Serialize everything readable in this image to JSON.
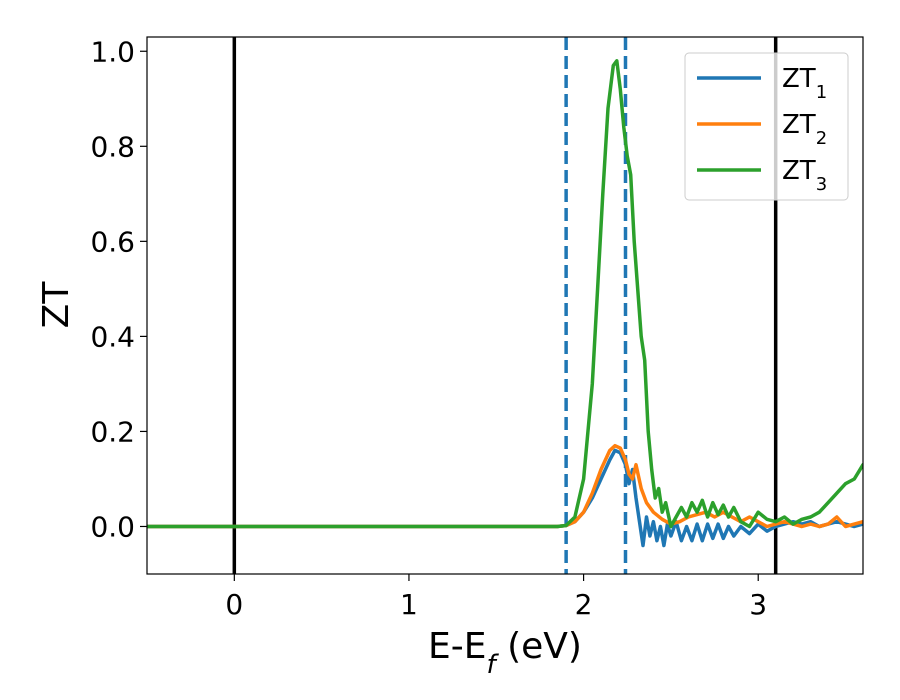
{
  "chart_data": {
    "type": "line",
    "xlabel": "E-E_f (eV)",
    "xlabel_main": "E-E",
    "xlabel_sub": "f",
    "xlabel_tail": " (eV)",
    "ylabel": "ZT",
    "xlim": [
      -0.5,
      3.6
    ],
    "ylim": [
      -0.1,
      1.03
    ],
    "xticks": [
      0,
      1,
      2,
      3
    ],
    "xtick_labels": [
      "0",
      "1",
      "2",
      "3"
    ],
    "yticks": [
      0.0,
      0.2,
      0.4,
      0.6,
      0.8,
      1.0
    ],
    "ytick_labels": [
      "0.0",
      "0.2",
      "0.4",
      "0.6",
      "0.8",
      "1.0"
    ],
    "grid": false,
    "legend_position": "top-right",
    "vlines": [
      {
        "x": 0.0,
        "style": "solid",
        "color": "#000000"
      },
      {
        "x": 3.1,
        "style": "solid",
        "color": "#000000"
      },
      {
        "x": 1.9,
        "style": "dashed",
        "color": "#1f77b4"
      },
      {
        "x": 2.24,
        "style": "dashed",
        "color": "#1f77b4"
      }
    ],
    "series": [
      {
        "name": "ZT_1",
        "legend_main": "ZT",
        "legend_sub": "1",
        "color": "#1f77b4",
        "x": [
          -0.5,
          1.85,
          1.9,
          1.95,
          2.0,
          2.05,
          2.1,
          2.15,
          2.18,
          2.21,
          2.24,
          2.26,
          2.28,
          2.3,
          2.32,
          2.34,
          2.36,
          2.38,
          2.4,
          2.42,
          2.44,
          2.46,
          2.48,
          2.5,
          2.53,
          2.56,
          2.59,
          2.62,
          2.65,
          2.68,
          2.71,
          2.74,
          2.77,
          2.8,
          2.83,
          2.86,
          2.9,
          2.95,
          3.0,
          3.05,
          3.1,
          3.15,
          3.2,
          3.25,
          3.3,
          3.35,
          3.4,
          3.45,
          3.5,
          3.55,
          3.6
        ],
        "y": [
          0.0,
          0.0,
          0.002,
          0.01,
          0.03,
          0.06,
          0.1,
          0.14,
          0.16,
          0.155,
          0.13,
          0.09,
          0.12,
          0.06,
          0.01,
          -0.04,
          0.02,
          -0.02,
          0.01,
          -0.03,
          0.0,
          -0.04,
          0.005,
          -0.02,
          0.01,
          -0.03,
          0.0,
          -0.03,
          0.005,
          -0.03,
          0.005,
          -0.025,
          0.005,
          -0.025,
          0.0,
          -0.02,
          0.0,
          -0.015,
          0.005,
          -0.01,
          0.0,
          0.005,
          0.01,
          0.005,
          0.01,
          0.0,
          0.005,
          0.01,
          0.005,
          0.0,
          0.005
        ]
      },
      {
        "name": "ZT_2",
        "legend_main": "ZT",
        "legend_sub": "2",
        "color": "#ff7f0e",
        "x": [
          -0.5,
          1.85,
          1.9,
          1.95,
          2.0,
          2.05,
          2.1,
          2.15,
          2.18,
          2.21,
          2.24,
          2.26,
          2.28,
          2.3,
          2.33,
          2.36,
          2.4,
          2.45,
          2.5,
          2.55,
          2.6,
          2.65,
          2.7,
          2.75,
          2.8,
          2.85,
          2.9,
          2.95,
          3.0,
          3.05,
          3.1,
          3.15,
          3.2,
          3.25,
          3.3,
          3.35,
          3.4,
          3.45,
          3.5,
          3.55,
          3.6
        ],
        "y": [
          0.0,
          0.0,
          0.002,
          0.01,
          0.03,
          0.07,
          0.12,
          0.16,
          0.17,
          0.165,
          0.14,
          0.11,
          0.1,
          0.13,
          0.08,
          0.05,
          0.03,
          0.015,
          0.005,
          0.01,
          0.02,
          0.025,
          0.03,
          0.02,
          0.03,
          0.02,
          0.01,
          0.02,
          0.01,
          0.0,
          0.005,
          0.01,
          0.005,
          0.0,
          0.005,
          0.0,
          0.005,
          0.02,
          0.0,
          0.005,
          0.01
        ]
      },
      {
        "name": "ZT_3",
        "legend_main": "ZT",
        "legend_sub": "3",
        "color": "#2ca02c",
        "x": [
          -0.5,
          1.85,
          1.9,
          1.95,
          2.0,
          2.05,
          2.08,
          2.11,
          2.14,
          2.17,
          2.19,
          2.21,
          2.23,
          2.25,
          2.27,
          2.29,
          2.31,
          2.33,
          2.35,
          2.37,
          2.39,
          2.41,
          2.43,
          2.45,
          2.47,
          2.5,
          2.53,
          2.56,
          2.59,
          2.62,
          2.65,
          2.68,
          2.71,
          2.74,
          2.77,
          2.8,
          2.83,
          2.86,
          2.9,
          2.95,
          3.0,
          3.05,
          3.1,
          3.15,
          3.2,
          3.25,
          3.3,
          3.35,
          3.4,
          3.45,
          3.5,
          3.55,
          3.6
        ],
        "y": [
          0.0,
          0.0,
          0.002,
          0.02,
          0.1,
          0.3,
          0.5,
          0.7,
          0.88,
          0.97,
          0.98,
          0.92,
          0.84,
          0.78,
          0.74,
          0.6,
          0.5,
          0.4,
          0.35,
          0.2,
          0.12,
          0.06,
          0.08,
          0.03,
          0.05,
          0.0,
          0.02,
          0.04,
          0.02,
          0.05,
          0.03,
          0.055,
          0.02,
          0.05,
          0.025,
          0.045,
          0.02,
          0.04,
          0.01,
          0.0,
          0.03,
          0.015,
          0.01,
          0.02,
          0.005,
          0.015,
          0.02,
          0.03,
          0.05,
          0.07,
          0.09,
          0.1,
          0.13
        ]
      }
    ]
  }
}
